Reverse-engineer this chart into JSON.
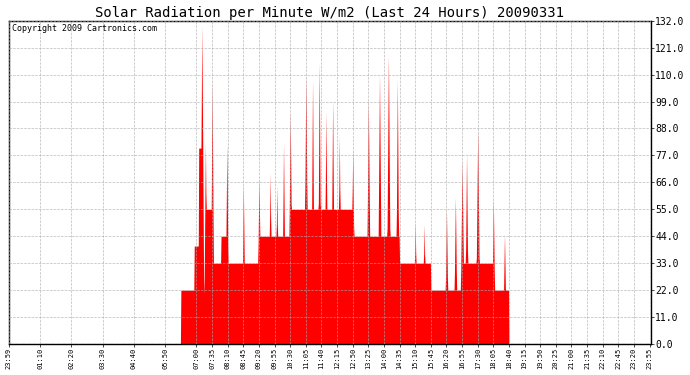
{
  "title": "Solar Radiation per Minute W/m2 (Last 24 Hours) 20090331",
  "copyright": "Copyright 2009 Cartronics.com",
  "y_ticks": [
    0.0,
    11.0,
    22.0,
    33.0,
    44.0,
    55.0,
    66.0,
    77.0,
    88.0,
    99.0,
    110.0,
    121.0,
    132.0
  ],
  "ylim": [
    0,
    132.0
  ],
  "bar_color": "#FF0000",
  "background_color": "#FFFFFF",
  "grid_color": "#AAAAAA",
  "dashed_line_color": "#FF0000",
  "x_tick_labels": [
    "23:59",
    "01:10",
    "02:20",
    "03:30",
    "04:40",
    "05:50",
    "07:00",
    "07:35",
    "08:10",
    "08:45",
    "09:20",
    "09:55",
    "10:30",
    "11:05",
    "11:40",
    "12:15",
    "12:50",
    "13:25",
    "14:00",
    "14:35",
    "15:10",
    "15:45",
    "16:20",
    "16:55",
    "17:30",
    "18:05",
    "18:40",
    "19:15",
    "19:50",
    "20:25",
    "21:00",
    "21:35",
    "22:10",
    "22:45",
    "23:20",
    "23:55"
  ],
  "title_fontsize": 10,
  "copyright_fontsize": 6,
  "ytick_fontsize": 7,
  "xtick_fontsize": 5
}
